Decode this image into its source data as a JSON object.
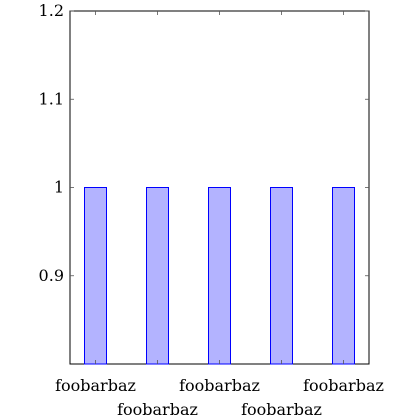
{
  "chart_data": {
    "type": "bar",
    "categories": [
      "foobarbaz",
      "foobarbaz",
      "foobarbaz",
      "foobarbaz",
      "foobarbaz"
    ],
    "values": [
      1,
      1,
      1,
      1,
      1
    ],
    "ylim": [
      0.8,
      1.2
    ],
    "yticks": [
      "0.9",
      "1",
      "1.1",
      "1.2"
    ],
    "grid": false,
    "legend": "none",
    "colors": {
      "bar_fill": "#b3b3ff",
      "bar_stroke": "#0000ff",
      "axis": "#000000",
      "tick": "#555555"
    }
  }
}
